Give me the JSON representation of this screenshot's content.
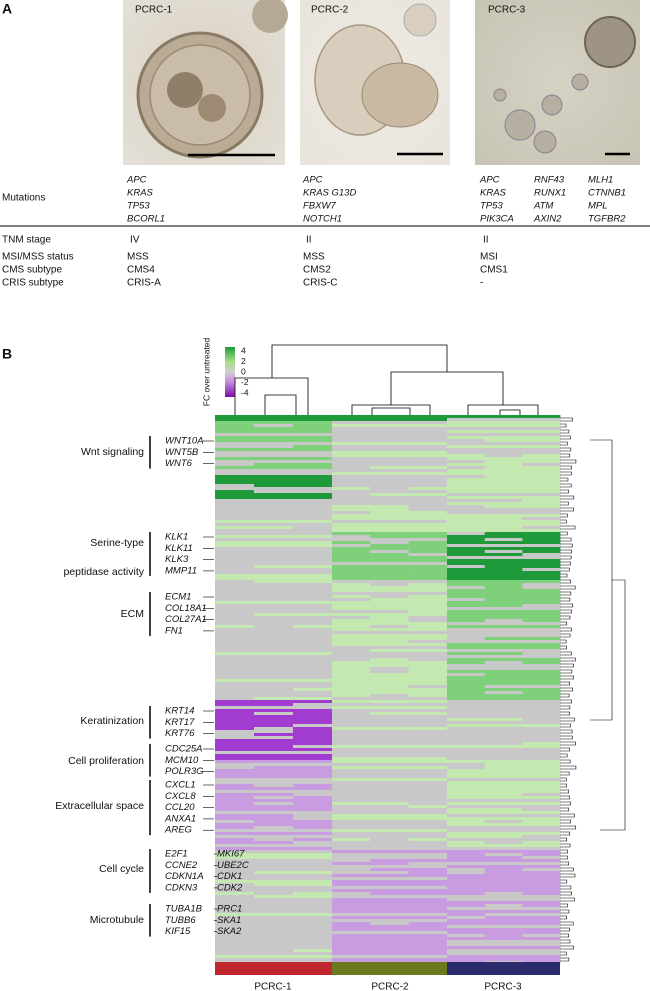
{
  "panel_a": {
    "label": "A",
    "row_labels": {
      "mutations": "Mutations",
      "tnm": "TNM stage",
      "msi": "MSI/MSS status",
      "cms": "CMS subtype",
      "cris": "CRIS subtype"
    },
    "organoids": [
      {
        "name": "PCRC-1",
        "mutations": [
          "APC",
          "KRAS",
          "TP53",
          "BCORL1"
        ],
        "tnm": "IV",
        "msi": "MSS",
        "cms": "CMS4",
        "cris": "CRIS-A"
      },
      {
        "name": "PCRC-2",
        "mutations": [
          "APC",
          "KRAS G13D",
          "FBXW7",
          "NOTCH1"
        ],
        "tnm": "II",
        "msi": "MSS",
        "cms": "CMS2",
        "cris": "CRIS-C"
      },
      {
        "name": "PCRC-3",
        "mutations": [
          "APC",
          "KRAS",
          "TP53",
          "PIK3CA",
          "RNF43",
          "RUNX1",
          "ATM",
          "AXIN2",
          "MLH1",
          "CTNNB1",
          "MPL",
          "TGFBR2"
        ],
        "tnm": "II",
        "msi": "MSI",
        "cms": "CMS1",
        "cris": "-"
      }
    ]
  },
  "panel_b": {
    "label": "B",
    "legend_title": "FC over untreated",
    "legend_ticks": [
      "4",
      "2",
      "0",
      "-2",
      "-4"
    ],
    "groups": [
      "PCRC-1",
      "PCRC-2",
      "PCRC-3"
    ],
    "annotations": [
      {
        "label": [
          "Wnt signaling"
        ],
        "genes": [
          "WNT10A",
          "WNT5B",
          "WNT6"
        ]
      },
      {
        "label": [
          "Serine-type",
          "peptidase activity"
        ],
        "genes": [
          "KLK1",
          "KLK11",
          "KLK3",
          "MMP11"
        ]
      },
      {
        "label": [
          "ECM"
        ],
        "genes": [
          "ECM1",
          "COL18A1",
          "COL27A1",
          "FN1"
        ]
      },
      {
        "label": [
          "Keratinization"
        ],
        "genes": [
          "KRT14",
          "KRT17",
          "KRT76"
        ]
      },
      {
        "label": [
          "Cell proliferation"
        ],
        "genes": [
          "CDC25A",
          "MCM10",
          "POLR3G"
        ]
      },
      {
        "label": [
          "Extracellular space"
        ],
        "genes": [
          "CXCL1",
          "CXCL8",
          "CCL20",
          "ANXA1",
          "AREG"
        ]
      },
      {
        "label": [
          "Cell cycle"
        ],
        "genes": [
          "E2F1",
          "CCNE2",
          "CDKN1A",
          "CDKN3",
          "MKI67",
          "UBE2C",
          "CDK1",
          "CDK2"
        ]
      },
      {
        "label": [
          "Microtubule"
        ],
        "genes": [
          "TUBA1B",
          "TUBB6",
          "KIF15",
          "PRC1",
          "SKA1",
          "SKA2"
        ]
      }
    ]
  }
}
